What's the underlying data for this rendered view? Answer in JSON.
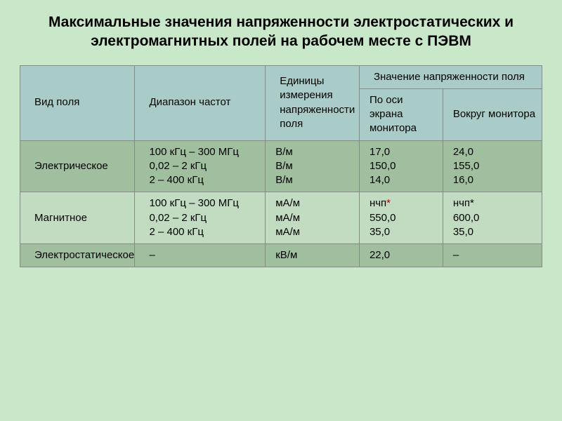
{
  "title": "Максимальные значения напряженности электростатических и электромагнитных полей на рабочем месте с ПЭВМ",
  "table": {
    "type": "table",
    "header_bg": "#a9ccc9",
    "row_dark_bg": "#9fbf9f",
    "row_light_bg": "#c1dcc1",
    "border_color": "#888888",
    "background_color": "#c9e8c9",
    "font_size": 15,
    "title_fontsize": 21,
    "col_widths_percent": [
      22,
      25,
      18,
      16,
      19
    ],
    "columns": {
      "c1": "Вид поля",
      "c2": "Диапазон частот",
      "c3": "Единицы измерения напряженности поля",
      "grp": "Значение напряженности поля",
      "c4": "По оси экрана монитора",
      "c5": "Вокруг монитора"
    },
    "rows": [
      {
        "field": "Электрическое",
        "range": "100 кГц – 300 МГц\n0,02 – 2 кГц\n2 – 400 кГц",
        "unit": "В/м\nВ/м\nВ/м",
        "axis": "17,0\n150,0\n14,0",
        "around": "24,0\n155,0\n16,0"
      },
      {
        "field": "Магнитное",
        "range": "100 кГц – 300 МГц\n0,02 – 2 кГц\n2 – 400 кГц",
        "unit": "мА/м\nмА/м\nмА/м",
        "axis_pre": "нчп",
        "axis_ast": "*",
        "axis_post": "\n550,0\n35,0",
        "around": "нчп*\n600,0\n35,0"
      },
      {
        "field": "Электростатическое",
        "range": "–",
        "unit": "кВ/м",
        "axis": "22,0",
        "around": "–"
      }
    ]
  }
}
